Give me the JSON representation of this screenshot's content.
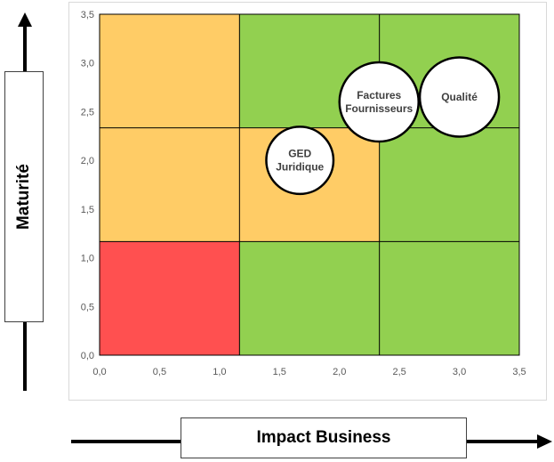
{
  "chart_data": {
    "type": "scatter",
    "title": "",
    "xlabel": "Impact Business",
    "ylabel": "Maturité",
    "xlim": [
      0,
      3.5
    ],
    "ylim": [
      0,
      3.5
    ],
    "x_ticks": [
      "0,0",
      "0,5",
      "1,0",
      "1,5",
      "2,0",
      "2,5",
      "3,0",
      "3,5"
    ],
    "y_ticks": [
      "0,0",
      "0,5",
      "1,0",
      "1,5",
      "2,0",
      "2,5",
      "3,0",
      "3,5"
    ],
    "grid_breaks": [
      1.1667,
      2.3333
    ],
    "zone_colors": {
      "green": "#92d050",
      "orange": "#ffcc66",
      "red": "#ff5050"
    },
    "zones": [
      [
        "orange",
        "green",
        "green"
      ],
      [
        "orange",
        "orange",
        "green"
      ],
      [
        "green",
        "green",
        "green"
      ]
    ],
    "bubbles": [
      {
        "label_lines": [
          "GED",
          "Juridique"
        ],
        "x": 1.67,
        "y": 2.0,
        "r": 0.28
      },
      {
        "label_lines": [
          "Factures",
          "Fournisseurs"
        ],
        "x": 2.33,
        "y": 2.6,
        "r": 0.33
      },
      {
        "label_lines": [
          "Qualité"
        ],
        "x": 3.0,
        "y": 2.65,
        "r": 0.33
      }
    ],
    "legend": "none"
  }
}
